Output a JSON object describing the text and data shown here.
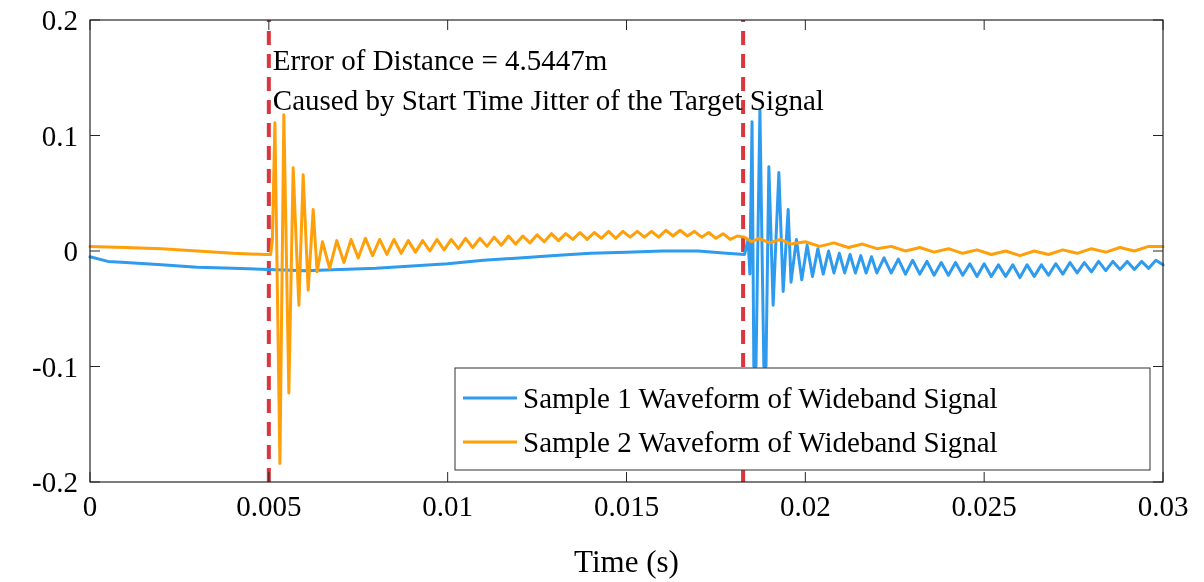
{
  "chart_data": {
    "type": "line",
    "xlabel": "Time (s)",
    "xlim": [
      0,
      0.03
    ],
    "xticks": [
      0,
      0.005,
      0.01,
      0.015,
      0.02,
      0.025,
      0.03
    ],
    "ylim": [
      -0.2,
      0.2
    ],
    "yticks": [
      -0.2,
      -0.1,
      0,
      0.1,
      0.2
    ],
    "grid": false,
    "legend": "bottom right",
    "marker": "none",
    "line_style": "solid",
    "annotations": [
      "Error of Distance = 4.5447m",
      "Caused by Start Time Jitter of the Target Signal"
    ],
    "ref_lines": [
      {
        "axis": "x",
        "value": 0.005,
        "color": "#d9363e",
        "line_style": "dashed"
      },
      {
        "axis": "x",
        "value": 0.01826,
        "color": "#d9363e",
        "line_style": "dashed"
      }
    ],
    "series": [
      {
        "name": "Sample 1 Waveform of Wideband Signal",
        "color": "#2f9bef",
        "x": [
          0,
          0.0005,
          0.001,
          0.002,
          0.003,
          0.004,
          0.005,
          0.006,
          0.007,
          0.008,
          0.009,
          0.01,
          0.011,
          0.012,
          0.013,
          0.014,
          0.015,
          0.016,
          0.017,
          0.0178,
          0.0183,
          0.0184,
          0.01845,
          0.01851,
          0.01856,
          0.01859,
          0.01862,
          0.01873,
          0.01884,
          0.01887,
          0.0189,
          0.01898,
          0.0191,
          0.01926,
          0.01938,
          0.01952,
          0.0196,
          0.01975,
          0.0199,
          0.02005,
          0.0202,
          0.02035,
          0.0205,
          0.02065,
          0.0208,
          0.02095,
          0.0211,
          0.02125,
          0.0214,
          0.02155,
          0.0217,
          0.02185,
          0.022,
          0.0222,
          0.0224,
          0.0226,
          0.0228,
          0.023,
          0.0232,
          0.0234,
          0.0236,
          0.0238,
          0.024,
          0.0242,
          0.0244,
          0.0246,
          0.0248,
          0.025,
          0.0252,
          0.0254,
          0.0256,
          0.0258,
          0.026,
          0.0262,
          0.0264,
          0.0266,
          0.0268,
          0.027,
          0.0272,
          0.0274,
          0.0276,
          0.0278,
          0.028,
          0.0282,
          0.0284,
          0.0286,
          0.0288,
          0.029,
          0.0292,
          0.0294,
          0.0296,
          0.0298,
          0.03
        ],
        "values": [
          -0.005,
          -0.009,
          -0.01,
          -0.012,
          -0.014,
          -0.015,
          -0.016,
          -0.017,
          -0.016,
          -0.015,
          -0.013,
          -0.011,
          -0.008,
          -0.006,
          -0.004,
          -0.002,
          -0.001,
          0,
          0,
          -0.002,
          -0.003,
          0.01,
          -0.02,
          0.112,
          -0.1,
          null,
          -0.1,
          0.122,
          -0.1,
          null,
          -0.1,
          0.073,
          -0.047,
          0.068,
          -0.035,
          0.036,
          -0.027,
          0.01,
          -0.025,
          0.005,
          -0.022,
          0.002,
          -0.02,
          0,
          -0.019,
          -0.002,
          -0.019,
          -0.003,
          -0.019,
          -0.004,
          -0.019,
          -0.005,
          -0.019,
          -0.006,
          -0.019,
          -0.007,
          -0.02,
          -0.008,
          -0.02,
          -0.009,
          -0.021,
          -0.01,
          -0.021,
          -0.01,
          -0.021,
          -0.011,
          -0.022,
          -0.011,
          -0.022,
          -0.012,
          -0.022,
          -0.012,
          -0.023,
          -0.012,
          -0.022,
          -0.012,
          -0.021,
          -0.011,
          -0.02,
          -0.01,
          -0.019,
          -0.01,
          -0.018,
          -0.009,
          -0.017,
          -0.009,
          -0.016,
          -0.009,
          -0.016,
          -0.009,
          -0.015,
          -0.008,
          -0.012
        ]
      },
      {
        "name": "Sample 2 Waveform of Wideband Signal",
        "color": "#ff9f0a",
        "x": [
          0,
          0.001,
          0.002,
          0.003,
          0.004,
          0.0049,
          0.00505,
          0.0051,
          0.00517,
          0.00531,
          0.00542,
          0.00556,
          0.00568,
          0.00584,
          0.00596,
          0.0061,
          0.00624,
          0.00635,
          0.0065,
          0.0067,
          0.0069,
          0.0071,
          0.0073,
          0.0075,
          0.0077,
          0.0079,
          0.0081,
          0.0083,
          0.0085,
          0.0087,
          0.0089,
          0.0091,
          0.0093,
          0.0095,
          0.0097,
          0.0099,
          0.0101,
          0.0103,
          0.0105,
          0.0107,
          0.0109,
          0.0111,
          0.0113,
          0.0115,
          0.0117,
          0.0119,
          0.0121,
          0.0123,
          0.0125,
          0.0127,
          0.0129,
          0.0131,
          0.0133,
          0.0135,
          0.0137,
          0.0139,
          0.0141,
          0.0143,
          0.0145,
          0.0147,
          0.0149,
          0.0151,
          0.0153,
          0.0155,
          0.0157,
          0.0159,
          0.0161,
          0.0163,
          0.0165,
          0.0167,
          0.0169,
          0.0171,
          0.0173,
          0.0175,
          0.0177,
          0.0179,
          0.0181,
          0.0183,
          0.0185,
          0.0187,
          0.019,
          0.0193,
          0.0196,
          0.02,
          0.0204,
          0.0208,
          0.0212,
          0.0216,
          0.022,
          0.0224,
          0.0228,
          0.0232,
          0.0236,
          0.024,
          0.0244,
          0.0248,
          0.0252,
          0.0256,
          0.026,
          0.0264,
          0.0268,
          0.0272,
          0.0276,
          0.028,
          0.0284,
          0.0288,
          0.0292,
          0.0296,
          0.03
        ],
        "values": [
          0.004,
          0.003,
          0.002,
          0,
          -0.002,
          -0.003,
          -0.003,
          0.01,
          0.111,
          -0.184,
          0.118,
          -0.123,
          0.072,
          -0.047,
          0.066,
          -0.034,
          0.036,
          -0.018,
          0.008,
          -0.015,
          0.009,
          -0.01,
          0.01,
          -0.006,
          0.011,
          -0.004,
          0.01,
          -0.003,
          0.01,
          -0.002,
          0.009,
          -0.001,
          0.009,
          0,
          0.01,
          0.001,
          0.01,
          0.002,
          0.011,
          0.003,
          0.011,
          0.004,
          0.012,
          0.005,
          0.013,
          0.006,
          0.013,
          0.007,
          0.014,
          0.008,
          0.015,
          0.009,
          0.015,
          0.01,
          0.016,
          0.01,
          0.016,
          0.011,
          0.017,
          0.011,
          0.017,
          0.012,
          0.017,
          0.012,
          0.017,
          0.012,
          0.018,
          0.013,
          0.018,
          0.013,
          0.017,
          0.012,
          0.016,
          0.011,
          0.015,
          0.01,
          0.013,
          0.012,
          0.008,
          0.011,
          0.007,
          0.01,
          0.006,
          0.008,
          0.004,
          0.007,
          0.003,
          0.006,
          0.002,
          0.004,
          0,
          0.003,
          -0.001,
          0.002,
          -0.002,
          0.001,
          -0.003,
          0,
          -0.004,
          0,
          -0.003,
          0.001,
          -0.002,
          0.002,
          -0.001,
          0.003,
          0,
          0.004,
          0.004
        ]
      }
    ]
  }
}
